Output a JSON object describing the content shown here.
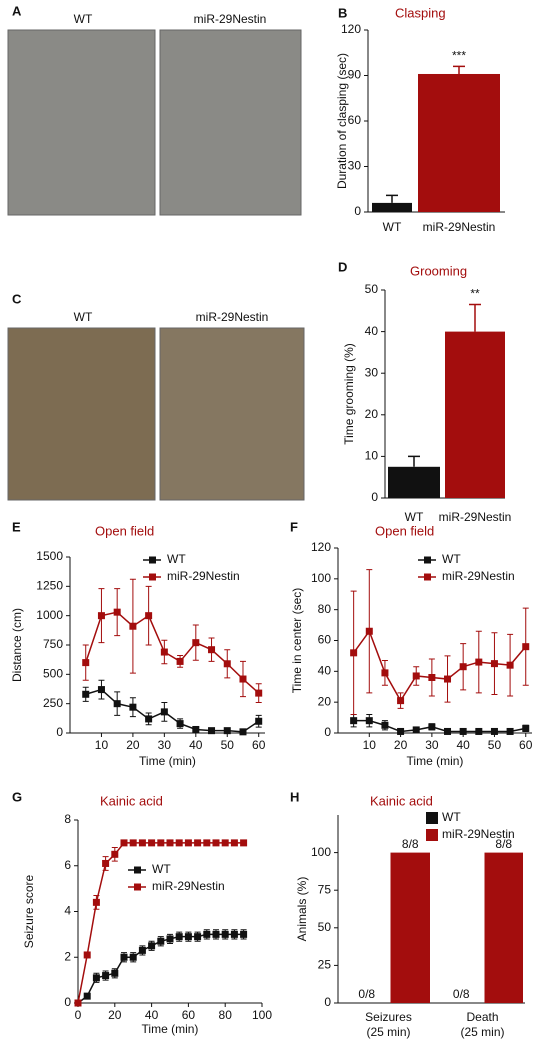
{
  "photos": [
    {
      "letter": "A",
      "labels": [
        "WT",
        "miR-29Nestin"
      ]
    },
    {
      "letter": "C",
      "labels": [
        "WT",
        "miR-29Nestin"
      ]
    }
  ],
  "chart_data": [
    {
      "type": "bar",
      "letter": "B",
      "title": "Clasping",
      "y_label": "Duration of clasping (sec)",
      "categories": [
        "WT",
        "miR-29Nestin"
      ],
      "values": [
        6,
        91
      ],
      "errors": [
        5,
        5
      ],
      "colors": [
        "#111111",
        "#a30d0d"
      ],
      "significance": "***",
      "ylim": [
        0,
        120
      ],
      "yticks": [
        0,
        30,
        60,
        90,
        120
      ]
    },
    {
      "type": "bar",
      "letter": "D",
      "title": "Grooming",
      "y_label": "Time grooming (%)",
      "categories": [
        "WT",
        "miR-29Nestin"
      ],
      "values": [
        7.5,
        40
      ],
      "errors": [
        2.5,
        6.5
      ],
      "colors": [
        "#111111",
        "#a30d0d"
      ],
      "significance": "**",
      "ylim": [
        0,
        50
      ],
      "yticks": [
        0,
        10,
        20,
        30,
        40,
        50
      ]
    },
    {
      "type": "line",
      "letter": "E",
      "title": "Open field",
      "y_label": "Distance (cm)",
      "x_label": "Time (min)",
      "x": [
        5,
        10,
        15,
        20,
        25,
        30,
        35,
        40,
        45,
        50,
        55,
        60
      ],
      "series": [
        {
          "name": "WT",
          "color": "#111111",
          "values": [
            330,
            370,
            250,
            220,
            120,
            180,
            80,
            30,
            20,
            20,
            10,
            100
          ],
          "errors": [
            60,
            80,
            100,
            80,
            50,
            80,
            40,
            20,
            20,
            20,
            10,
            50
          ]
        },
        {
          "name": "miR-29Nestin",
          "color": "#a30d0d",
          "values": [
            600,
            1000,
            1030,
            910,
            1000,
            690,
            610,
            770,
            710,
            590,
            460,
            340
          ],
          "errors": [
            150,
            230,
            200,
            400,
            250,
            100,
            50,
            150,
            100,
            120,
            150,
            80
          ]
        }
      ],
      "xlim": [
        0,
        62
      ],
      "xticks": [
        10,
        20,
        30,
        40,
        50,
        60
      ],
      "ylim": [
        0,
        1500
      ],
      "yticks": [
        0,
        250,
        500,
        750,
        1000,
        1250,
        1500
      ]
    },
    {
      "type": "line",
      "letter": "F",
      "title": "Open field",
      "y_label": "Time in center (sec)",
      "x_label": "Time (min)",
      "x": [
        5,
        10,
        15,
        20,
        25,
        30,
        35,
        40,
        45,
        50,
        55,
        60
      ],
      "series": [
        {
          "name": "WT",
          "color": "#111111",
          "values": [
            8,
            8,
            5,
            1,
            2,
            4,
            1,
            1,
            1,
            1,
            1,
            3
          ],
          "errors": [
            4,
            4,
            3,
            1,
            1,
            2,
            1,
            1,
            1,
            1,
            1,
            2
          ]
        },
        {
          "name": "miR-29Nestin",
          "color": "#a30d0d",
          "values": [
            52,
            66,
            39,
            21,
            37,
            36,
            35,
            43,
            46,
            45,
            44,
            56
          ],
          "errors": [
            40,
            40,
            8,
            5,
            6,
            12,
            15,
            15,
            20,
            20,
            20,
            25
          ]
        }
      ],
      "xlim": [
        0,
        62
      ],
      "xticks": [
        10,
        20,
        30,
        40,
        50,
        60
      ],
      "ylim": [
        0,
        120
      ],
      "yticks": [
        0,
        20,
        40,
        60,
        80,
        100,
        120
      ]
    },
    {
      "type": "line",
      "letter": "G",
      "title": "Kainic acid",
      "y_label": "Seizure score",
      "x_label": "Time (min)",
      "x": [
        0,
        5,
        10,
        15,
        20,
        25,
        30,
        35,
        40,
        45,
        50,
        55,
        60,
        65,
        70,
        75,
        80,
        85,
        90
      ],
      "series": [
        {
          "name": "WT",
          "color": "#111111",
          "values": [
            0,
            0.3,
            1.1,
            1.2,
            1.3,
            2.0,
            2.0,
            2.3,
            2.5,
            2.7,
            2.8,
            2.9,
            2.9,
            2.9,
            3.0,
            3.0,
            3.0,
            3.0,
            3.0
          ],
          "errors": [
            0,
            0.1,
            0.2,
            0.2,
            0.2,
            0.2,
            0.2,
            0.2,
            0.2,
            0.2,
            0.2,
            0.2,
            0.2,
            0.2,
            0.2,
            0.2,
            0.2,
            0.2,
            0.2
          ]
        },
        {
          "name": "miR-29Nestin",
          "color": "#a30d0d",
          "values": [
            0,
            2.1,
            4.4,
            6.1,
            6.5,
            7,
            7,
            7,
            7,
            7,
            7,
            7,
            7,
            7,
            7,
            7,
            7,
            7,
            7
          ],
          "errors": [
            0,
            0.1,
            0.3,
            0.3,
            0.3,
            0,
            0,
            0,
            0,
            0,
            0,
            0,
            0,
            0,
            0,
            0,
            0,
            0,
            0
          ]
        }
      ],
      "xlim": [
        0,
        100
      ],
      "xticks": [
        0,
        20,
        40,
        60,
        80,
        100
      ],
      "ylim": [
        0,
        8
      ],
      "yticks": [
        0,
        2,
        4,
        6,
        8
      ]
    },
    {
      "type": "grouped-bar",
      "letter": "H",
      "title": "Kainic acid",
      "y_label": "Animals (%)",
      "categories": [
        [
          "Seizures",
          "(25 min)"
        ],
        [
          "Death",
          "(25 min)"
        ]
      ],
      "series": [
        {
          "name": "WT",
          "color": "#111111",
          "values": [
            0,
            0
          ],
          "value_labels": [
            "0/8",
            "0/8"
          ]
        },
        {
          "name": "miR-29Nestin",
          "color": "#a30d0d",
          "values": [
            100,
            100
          ],
          "value_labels": [
            "8/8",
            "8/8"
          ]
        }
      ],
      "ylim": [
        0,
        125
      ],
      "yticks": [
        0,
        25,
        50,
        75,
        100
      ]
    }
  ]
}
